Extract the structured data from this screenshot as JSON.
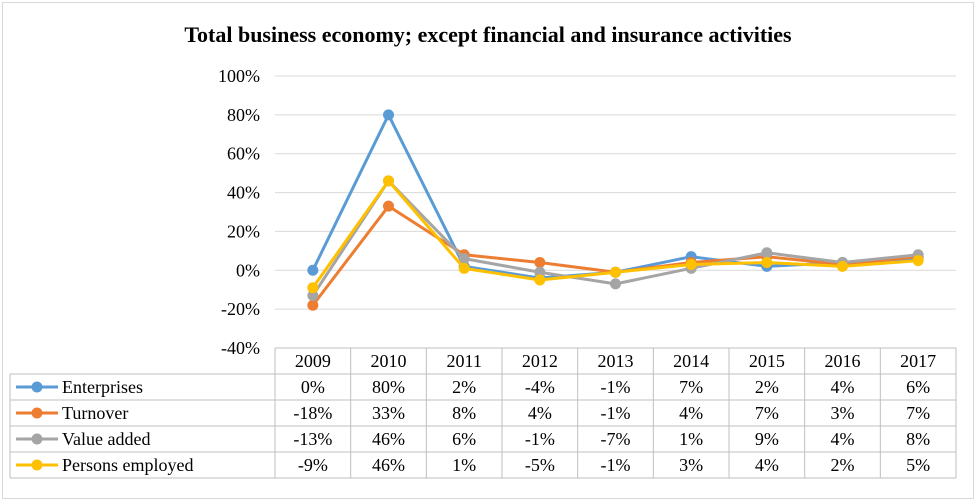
{
  "chart_data": {
    "type": "line",
    "title": "Total business economy; except financial and insurance activities",
    "categories": [
      "2009",
      "2010",
      "2011",
      "2012",
      "2013",
      "2014",
      "2015",
      "2016",
      "2017"
    ],
    "ylim": [
      -40,
      100
    ],
    "y_ticks": [
      "100%",
      "80%",
      "60%",
      "40%",
      "20%",
      "0%",
      "-20%",
      "-40%"
    ],
    "grid": true,
    "legend": "data-table",
    "series": [
      {
        "name": "Enterprises",
        "color": "#5b9bd5",
        "values": [
          0,
          80,
          2,
          -4,
          -1,
          7,
          2,
          4,
          6
        ],
        "labels": [
          "0%",
          "80%",
          "2%",
          "-4%",
          "-1%",
          "7%",
          "2%",
          "4%",
          "6%"
        ]
      },
      {
        "name": "Turnover",
        "color": "#ed7d31",
        "values": [
          -18,
          33,
          8,
          4,
          -1,
          4,
          7,
          3,
          7
        ],
        "labels": [
          "-18%",
          "33%",
          "8%",
          "4%",
          "-1%",
          "4%",
          "7%",
          "3%",
          "7%"
        ]
      },
      {
        "name": "Value added",
        "color": "#a5a5a5",
        "values": [
          -13,
          46,
          6,
          -1,
          -7,
          1,
          9,
          4,
          8
        ],
        "labels": [
          "-13%",
          "46%",
          "6%",
          "-1%",
          "-7%",
          "1%",
          "9%",
          "4%",
          "8%"
        ]
      },
      {
        "name": "Persons employed",
        "color": "#ffc000",
        "values": [
          -9,
          46,
          1,
          -5,
          -1,
          3,
          4,
          2,
          5
        ],
        "labels": [
          "-9%",
          "46%",
          "1%",
          "-5%",
          "-1%",
          "3%",
          "4%",
          "2%",
          "5%"
        ]
      }
    ]
  }
}
